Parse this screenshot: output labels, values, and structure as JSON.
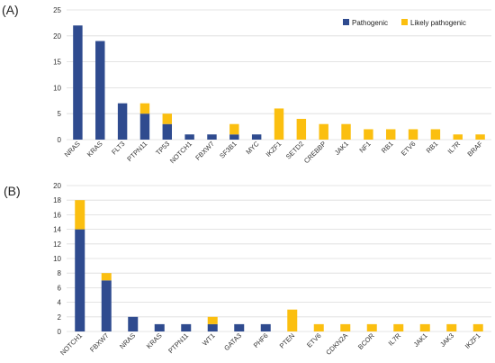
{
  "colors": {
    "pathogenic": "#2f4b8f",
    "likely_pathogenic": "#fbbf10"
  },
  "chart_data": [
    {
      "type": "bar",
      "stacked": true,
      "panel_label": "(A)",
      "categories": [
        "NRAS",
        "KRAS",
        "FLT3",
        "PTPN11",
        "TP53",
        "NOTCH1",
        "FBXW7",
        "SF3B1",
        "MYC",
        "IKZF1",
        "SETD2",
        "CREBBP",
        "JAK1",
        "NF1",
        "RB1",
        "ETV6",
        "RB1",
        "IL7R",
        "BRAF"
      ],
      "series": [
        {
          "name": "Pathogenic",
          "values": [
            22,
            19,
            7,
            5,
            3,
            1,
            1,
            1,
            1,
            0,
            0,
            0,
            0,
            0,
            0,
            0,
            0,
            0,
            0
          ]
        },
        {
          "name": "Likely pathogenic",
          "values": [
            0,
            0,
            0,
            2,
            2,
            0,
            0,
            2,
            0,
            6,
            4,
            3,
            3,
            2,
            2,
            2,
            2,
            1,
            1
          ]
        }
      ],
      "y_ticks": [
        "0",
        "5",
        "10",
        "15",
        "20",
        "25"
      ],
      "ylim": [
        0,
        25
      ],
      "grid": true,
      "legend": "top-right",
      "xlabel": "",
      "ylabel": ""
    },
    {
      "type": "bar",
      "stacked": true,
      "panel_label": "(B)",
      "categories": [
        "NOTCH1",
        "FBXW7",
        "NRAS",
        "KRAS",
        "PTPN11",
        "WT1",
        "GATA3",
        "PHF6",
        "PTEN",
        "ETV6",
        "CDKN2A",
        "BCOR",
        "IL7R",
        "JAK1",
        "JAK3",
        "IKZF1"
      ],
      "series": [
        {
          "name": "Pathogenic",
          "values": [
            14,
            7,
            2,
            1,
            1,
            1,
            1,
            1,
            0,
            0,
            0,
            0,
            0,
            0,
            0,
            0
          ]
        },
        {
          "name": "Likely pathogenic",
          "values": [
            4,
            1,
            0,
            0,
            0,
            1,
            0,
            0,
            3,
            1,
            1,
            1,
            1,
            1,
            1,
            1
          ]
        }
      ],
      "y_ticks": [
        "0",
        "2",
        "4",
        "6",
        "8",
        "10",
        "12",
        "14",
        "16",
        "18",
        "20"
      ],
      "ylim": [
        0,
        20
      ],
      "grid": true,
      "legend": "none",
      "xlabel": "",
      "ylabel": ""
    }
  ]
}
